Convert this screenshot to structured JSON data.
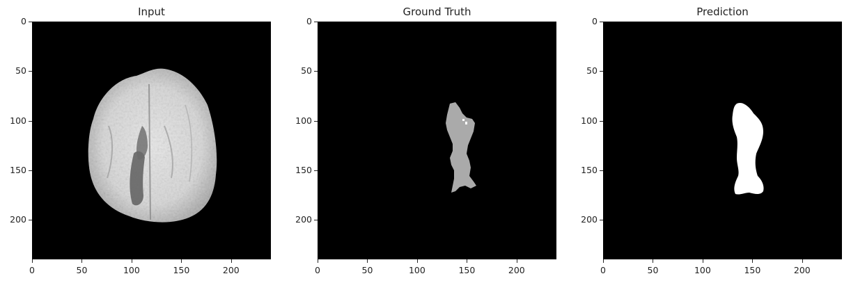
{
  "panels": [
    {
      "title": "Input",
      "image": "brain-mri-slice"
    },
    {
      "title": "Ground Truth",
      "image": "segmentation-mask-gray"
    },
    {
      "title": "Prediction",
      "image": "segmentation-mask-white"
    }
  ],
  "axis": {
    "x_ticks": [
      "0",
      "50",
      "100",
      "150",
      "200"
    ],
    "y_ticks": [
      "0",
      "50",
      "100",
      "150",
      "200"
    ],
    "x_range": [
      0,
      240
    ],
    "y_range": [
      0,
      240
    ]
  },
  "colors": {
    "background": "#000000",
    "ground_truth_mask": "#aaaaaa",
    "prediction_mask": "#ffffff"
  }
}
